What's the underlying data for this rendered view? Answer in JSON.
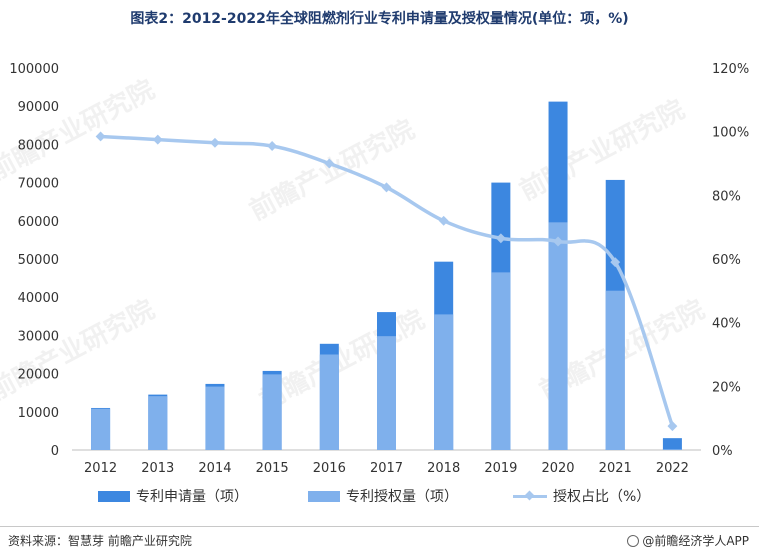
{
  "title": "图表2：2012-2022年全球阻燃剂行业专利申请量及授权量情况(单位：项，%)",
  "source": "资料来源：智慧芽 前瞻产业研究院",
  "brand": "@前瞻经济学人APP",
  "watermark": "前瞻产业研究院",
  "colors": {
    "applications": "#3c87e0",
    "grants": "#7fb0ec",
    "ratio": "#a7c8ef"
  },
  "chart_data": {
    "type": "bar",
    "categories": [
      "2012",
      "2013",
      "2014",
      "2015",
      "2016",
      "2017",
      "2018",
      "2019",
      "2020",
      "2021",
      "2022"
    ],
    "series": [
      {
        "name": "专利申请量（项）",
        "type": "bar",
        "axis": "left",
        "values": [
          11000,
          14500,
          17300,
          20700,
          27800,
          36100,
          49300,
          70000,
          91200,
          70700,
          3100
        ]
      },
      {
        "name": "专利授权量（项）",
        "type": "bar",
        "axis": "left",
        "values": [
          10800,
          14100,
          16600,
          19800,
          25000,
          29800,
          35500,
          46500,
          59600,
          41700,
          200
        ]
      },
      {
        "name": "授权占比（%）",
        "type": "line",
        "axis": "right",
        "values": [
          98.5,
          97.5,
          96.5,
          95.5,
          90,
          82.5,
          72,
          66.5,
          65.5,
          59,
          7.5
        ]
      }
    ],
    "y_left": {
      "min": 0,
      "max": 100000,
      "ticks": [
        "0",
        "10000",
        "20000",
        "30000",
        "40000",
        "50000",
        "60000",
        "70000",
        "80000",
        "90000",
        "100000"
      ]
    },
    "y_right": {
      "min": 0,
      "max": 120,
      "ticks": [
        "0%",
        "20%",
        "40%",
        "60%",
        "80%",
        "100%",
        "120%"
      ]
    },
    "grid": false,
    "legend": "bottom"
  }
}
